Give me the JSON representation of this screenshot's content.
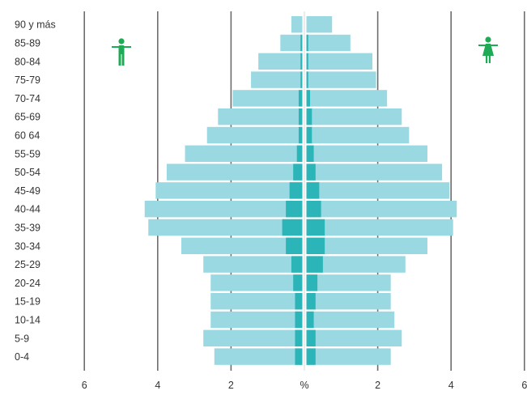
{
  "chart_data": {
    "type": "bar",
    "title": "",
    "xlabel": "%",
    "ylabel": "",
    "categories": [
      "90 y más",
      "85-89",
      "80-84",
      "75-79",
      "70-74",
      "65-69",
      "60 64",
      "55-59",
      "50-54",
      "45-49",
      "40-44",
      "35-39",
      "30-34",
      "25-29",
      "20-24",
      "15-19",
      "10-14",
      "5-9",
      "0-4"
    ],
    "xlim": [
      -6,
      6
    ],
    "x_ticks": [
      -6,
      -4,
      -2,
      2,
      4,
      6
    ],
    "x_tick_labels": [
      "6",
      "4",
      "2",
      "2",
      "4",
      "6"
    ],
    "center_label": "%",
    "grid": true,
    "series": [
      {
        "side": "left",
        "values": [
          0.3,
          0.6,
          1.2,
          1.4,
          1.9,
          2.3,
          2.6,
          3.2,
          3.7,
          4.0,
          4.3,
          4.2,
          3.3,
          2.7,
          2.5,
          2.5,
          2.5,
          2.7,
          2.4
        ]
      },
      {
        "side": "right",
        "values": [
          0.7,
          1.2,
          1.8,
          1.9,
          2.2,
          2.6,
          2.8,
          3.3,
          3.7,
          3.9,
          4.1,
          4.0,
          3.3,
          2.7,
          2.3,
          2.3,
          2.4,
          2.6,
          2.3
        ]
      },
      {
        "side": "left",
        "values": [
          0.0,
          0.05,
          0.05,
          0.05,
          0.1,
          0.1,
          0.1,
          0.15,
          0.25,
          0.35,
          0.45,
          0.55,
          0.45,
          0.3,
          0.25,
          0.2,
          0.2,
          0.2,
          0.2
        ]
      },
      {
        "side": "right",
        "values": [
          0.0,
          0.05,
          0.05,
          0.05,
          0.1,
          0.15,
          0.15,
          0.2,
          0.25,
          0.35,
          0.4,
          0.5,
          0.5,
          0.45,
          0.3,
          0.25,
          0.2,
          0.25,
          0.25
        ]
      }
    ],
    "colors": {
      "main_bar": "#9ad9e1",
      "inner_bar": "#2cb5b8",
      "grid": "#6d6d6d",
      "center": "#d8d8d8",
      "text": "#333333",
      "icon": "#1faa55"
    },
    "icons": {
      "left": "male-figure-icon",
      "right": "female-figure-icon"
    }
  }
}
